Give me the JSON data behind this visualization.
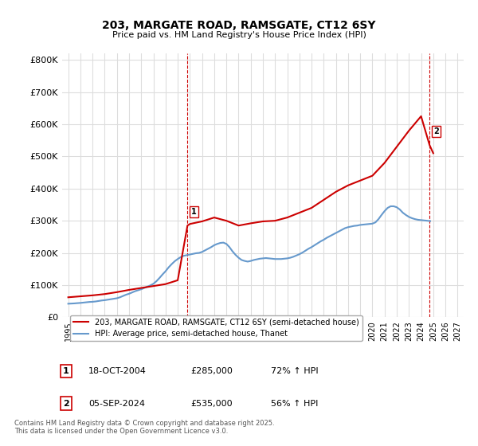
{
  "title": "203, MARGATE ROAD, RAMSGATE, CT12 6SY",
  "subtitle": "Price paid vs. HM Land Registry's House Price Index (HPI)",
  "ylabel_ticks": [
    "£0",
    "£100K",
    "£200K",
    "£300K",
    "£400K",
    "£500K",
    "£600K",
    "£700K",
    "£800K"
  ],
  "ytick_values": [
    0,
    100000,
    200000,
    300000,
    400000,
    500000,
    600000,
    700000,
    800000
  ],
  "ylim": [
    0,
    820000
  ],
  "xlim_start": 1995,
  "xlim_end": 2027,
  "xticks": [
    1995,
    1996,
    1997,
    1998,
    1999,
    2000,
    2001,
    2002,
    2003,
    2004,
    2005,
    2006,
    2007,
    2008,
    2009,
    2010,
    2011,
    2012,
    2013,
    2014,
    2015,
    2016,
    2017,
    2018,
    2019,
    2020,
    2021,
    2022,
    2023,
    2024,
    2025,
    2026,
    2027
  ],
  "red_line_color": "#cc0000",
  "blue_line_color": "#6699cc",
  "dashed_red_color": "#cc0000",
  "bg_color": "#ffffff",
  "grid_color": "#dddddd",
  "marker1_x": 2004.8,
  "marker1_y": 285000,
  "marker2_x": 2024.7,
  "marker2_y": 535000,
  "legend_red_label": "203, MARGATE ROAD, RAMSGATE, CT12 6SY (semi-detached house)",
  "legend_blue_label": "HPI: Average price, semi-detached house, Thanet",
  "annotation1_label": "1",
  "annotation2_label": "2",
  "table_rows": [
    [
      "1",
      "18-OCT-2004",
      "£285,000",
      "72% ↑ HPI"
    ],
    [
      "2",
      "05-SEP-2024",
      "£535,000",
      "56% ↑ HPI"
    ]
  ],
  "footer": "Contains HM Land Registry data © Crown copyright and database right 2025.\nThis data is licensed under the Open Government Licence v3.0.",
  "hpi_years": [
    1995,
    1995.25,
    1995.5,
    1995.75,
    1996,
    1996.25,
    1996.5,
    1996.75,
    1997,
    1997.25,
    1997.5,
    1997.75,
    1998,
    1998.25,
    1998.5,
    1998.75,
    1999,
    1999.25,
    1999.5,
    1999.75,
    2000,
    2000.25,
    2000.5,
    2000.75,
    2001,
    2001.25,
    2001.5,
    2001.75,
    2002,
    2002.25,
    2002.5,
    2002.75,
    2003,
    2003.25,
    2003.5,
    2003.75,
    2004,
    2004.25,
    2004.5,
    2004.75,
    2005,
    2005.25,
    2005.5,
    2005.75,
    2006,
    2006.25,
    2006.5,
    2006.75,
    2007,
    2007.25,
    2007.5,
    2007.75,
    2008,
    2008.25,
    2008.5,
    2008.75,
    2009,
    2009.25,
    2009.5,
    2009.75,
    2010,
    2010.25,
    2010.5,
    2010.75,
    2011,
    2011.25,
    2011.5,
    2011.75,
    2012,
    2012.25,
    2012.5,
    2012.75,
    2013,
    2013.25,
    2013.5,
    2013.75,
    2014,
    2014.25,
    2014.5,
    2014.75,
    2015,
    2015.25,
    2015.5,
    2015.75,
    2016,
    2016.25,
    2016.5,
    2016.75,
    2017,
    2017.25,
    2017.5,
    2017.75,
    2018,
    2018.25,
    2018.5,
    2018.75,
    2019,
    2019.25,
    2019.5,
    2019.75,
    2020,
    2020.25,
    2020.5,
    2020.75,
    2021,
    2021.25,
    2021.5,
    2021.75,
    2022,
    2022.25,
    2022.5,
    2022.75,
    2023,
    2023.25,
    2023.5,
    2023.75,
    2024,
    2024.25,
    2024.5,
    2024.75
  ],
  "hpi_values": [
    42000,
    42500,
    43000,
    43800,
    44500,
    45500,
    46500,
    47500,
    48000,
    49000,
    50500,
    52000,
    53000,
    54500,
    56000,
    57500,
    59000,
    62000,
    66000,
    70000,
    73000,
    77000,
    81000,
    84000,
    87000,
    91000,
    95000,
    99000,
    104000,
    112000,
    122000,
    133000,
    143000,
    155000,
    165000,
    174000,
    181000,
    187000,
    191000,
    193000,
    195000,
    197000,
    199000,
    200000,
    203000,
    208000,
    213000,
    218000,
    224000,
    228000,
    231000,
    232000,
    228000,
    218000,
    205000,
    194000,
    185000,
    178000,
    175000,
    173000,
    175000,
    178000,
    180000,
    182000,
    183000,
    184000,
    183000,
    182000,
    181000,
    181000,
    181000,
    182000,
    183000,
    185000,
    188000,
    192000,
    196000,
    201000,
    207000,
    213000,
    218000,
    224000,
    230000,
    236000,
    241000,
    247000,
    252000,
    257000,
    262000,
    267000,
    272000,
    277000,
    280000,
    282000,
    284000,
    285000,
    287000,
    288000,
    289000,
    290000,
    291000,
    295000,
    305000,
    318000,
    330000,
    340000,
    345000,
    345000,
    342000,
    335000,
    325000,
    318000,
    312000,
    308000,
    305000,
    303000,
    302000,
    301000,
    300000,
    299000
  ],
  "red_years": [
    1995,
    1996,
    1997,
    1998,
    1999,
    2000,
    2001,
    2002,
    2003,
    2004,
    2004.8,
    2005,
    2006,
    2007,
    2008,
    2009,
    2010,
    2011,
    2012,
    2013,
    2014,
    2015,
    2016,
    2017,
    2018,
    2019,
    2020,
    2021,
    2022,
    2023,
    2024,
    2024.7,
    2025
  ],
  "red_values": [
    62000,
    65000,
    68000,
    72000,
    78000,
    85000,
    91000,
    97000,
    103000,
    115000,
    285000,
    290000,
    298000,
    310000,
    300000,
    285000,
    292000,
    298000,
    300000,
    310000,
    325000,
    340000,
    365000,
    390000,
    410000,
    425000,
    440000,
    480000,
    530000,
    580000,
    625000,
    535000,
    510000
  ]
}
